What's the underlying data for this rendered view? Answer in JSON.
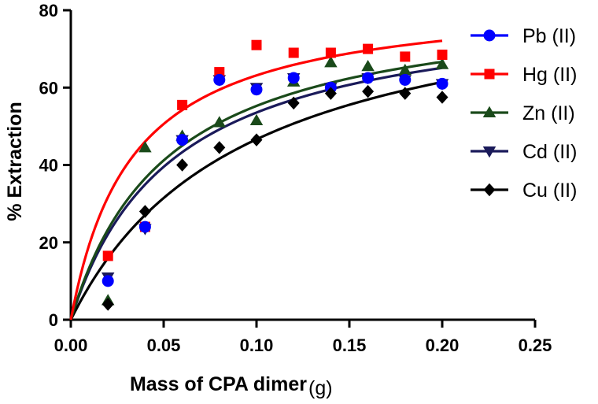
{
  "chart_data": {
    "type": "scatter",
    "title": "",
    "xlabel": "Mass of CPA dimer",
    "xlabel_unit": "(g)",
    "ylabel": "% Extraction",
    "xlim": [
      0,
      0.25
    ],
    "ylim": [
      0,
      80
    ],
    "xticks": [
      0,
      0.05,
      0.1,
      0.15,
      0.2,
      0.25
    ],
    "xtick_labels": [
      "0.00",
      "0.05",
      "0.10",
      "0.15",
      "0.20",
      "0.25"
    ],
    "yticks": [
      0,
      20,
      40,
      60,
      80
    ],
    "ytick_labels": [
      "0",
      "20",
      "40",
      "60",
      "80"
    ],
    "grid": false,
    "legend_position": "top-right",
    "x": [
      0.02,
      0.04,
      0.06,
      0.08,
      0.1,
      0.12,
      0.14,
      0.16,
      0.18,
      0.2
    ],
    "series": [
      {
        "name": "Pb (II)",
        "marker": "circle",
        "color": "#0000ff",
        "values": [
          10.0,
          24.0,
          46.5,
          62.0,
          59.5,
          62.5,
          60.0,
          62.5,
          62.0,
          61.0
        ],
        "fit": {
          "model": "hyperbolic",
          "vmax": 83.0,
          "k": 0.055
        }
      },
      {
        "name": "Hg (II)",
        "marker": "square",
        "color": "#ff0000",
        "values": [
          16.5,
          24.0,
          55.5,
          64.0,
          71.0,
          69.0,
          69.0,
          70.0,
          68.0,
          68.5
        ],
        "fit": {
          "model": "hyperbolic",
          "vmax": 84.0,
          "k": 0.033
        }
      },
      {
        "name": "Zn (II)",
        "marker": "triangle-up",
        "color": "#1a4a1a",
        "values": [
          5.0,
          44.5,
          47.5,
          51.0,
          51.5,
          61.5,
          66.5,
          65.5,
          64.5,
          66.0
        ],
        "fit": {
          "model": "hyperbolic",
          "vmax": 84.0,
          "k": 0.052
        }
      },
      {
        "name": "Cd (II)",
        "marker": "triangle-down",
        "color": "#1a1a5a",
        "values": [
          11.0,
          23.5,
          46.5,
          62.0,
          60.0,
          62.5,
          60.0,
          62.5,
          62.0,
          61.0
        ],
        "fit": {
          "model": "hyperbolic",
          "vmax": 83.0,
          "k": 0.055
        }
      },
      {
        "name": "Cu (II)",
        "marker": "diamond",
        "color": "#000000",
        "values": [
          4.0,
          28.0,
          40.0,
          44.5,
          46.5,
          56.0,
          58.5,
          59.0,
          58.5,
          57.5
        ],
        "fit": {
          "model": "hyperbolic",
          "vmax": 90.0,
          "k": 0.093
        }
      }
    ]
  }
}
